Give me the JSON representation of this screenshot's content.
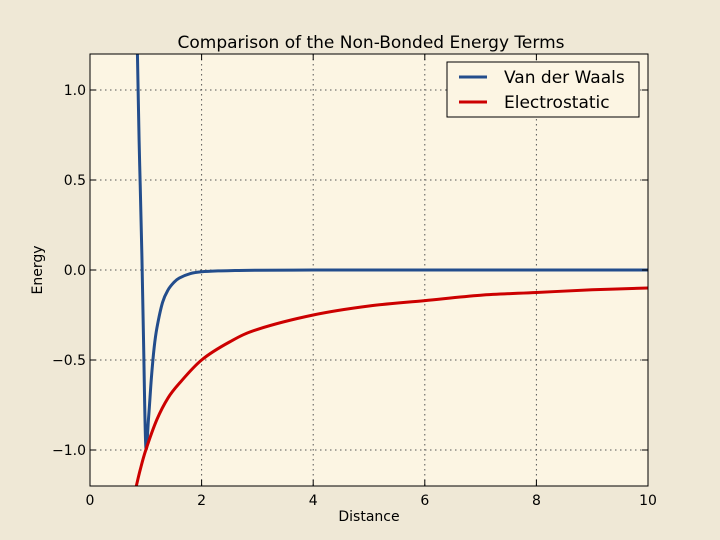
{
  "chart_data": {
    "type": "line",
    "title": "Comparison of the Non-Bonded Energy Terms",
    "xlabel": "Distance",
    "ylabel": "Energy",
    "xlim": [
      0,
      10
    ],
    "ylim": [
      -1.2,
      1.2
    ],
    "xticks": [
      0,
      2,
      4,
      6,
      8,
      10
    ],
    "xtick_labels": [
      "0",
      "2",
      "4",
      "6",
      "8",
      "10"
    ],
    "yticks": [
      -1.0,
      -0.5,
      0.0,
      0.5,
      1.0
    ],
    "ytick_labels": [
      "−1.0",
      "−0.5",
      "0.0",
      "0.5",
      "1.0"
    ],
    "grid": true,
    "legend_position": "top-right",
    "series": [
      {
        "name": "Van der Waals",
        "color": "#234d8c",
        "x": [
          0.85,
          0.88,
          0.9,
          0.93,
          0.96,
          1.0,
          1.05,
          1.1,
          1.15,
          1.2,
          1.3,
          1.4,
          1.5,
          1.6,
          1.8,
          2.0,
          2.3,
          2.6,
          3.0,
          4.0,
          5.0,
          6.0,
          8.0,
          10.0
        ],
        "y": [
          1.2,
          0.72,
          0.47,
          0.08,
          -0.4,
          -0.98,
          -0.82,
          -0.6,
          -0.43,
          -0.32,
          -0.18,
          -0.11,
          -0.07,
          -0.045,
          -0.02,
          -0.01,
          -0.005,
          -0.003,
          -0.0014,
          -0.0002,
          0.0,
          0.0,
          0.0,
          0.0
        ]
      },
      {
        "name": "Electrostatic",
        "color": "#cc0000",
        "x": [
          0.83,
          0.9,
          1.0,
          1.2,
          1.4,
          1.6,
          2.0,
          2.5,
          3.0,
          4.0,
          5.0,
          6.0,
          7.0,
          8.0,
          9.0,
          10.0
        ],
        "y": [
          -1.2,
          -1.11,
          -1.0,
          -0.83,
          -0.71,
          -0.63,
          -0.5,
          -0.4,
          -0.33,
          -0.25,
          -0.2,
          -0.17,
          -0.14,
          -0.125,
          -0.11,
          -0.1
        ]
      }
    ]
  }
}
